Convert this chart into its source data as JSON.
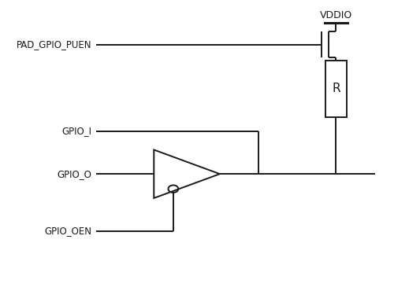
{
  "labels": {
    "vddio": "VDDIO",
    "puen": "PAD_GPIO_PUEN",
    "gpio_i": "GPIO_I",
    "gpio_o": "GPIO_O",
    "gpio_oen": "GPIO_OEN",
    "resistor": "R"
  },
  "colors": {
    "line": "#1a1a1a",
    "background": "#ffffff",
    "text": "#1a1a1a"
  },
  "lw": 1.4,
  "figsize": [
    5.19,
    3.7
  ],
  "dpi": 100,
  "xlim": [
    0,
    10
  ],
  "ylim": [
    0,
    10
  ]
}
